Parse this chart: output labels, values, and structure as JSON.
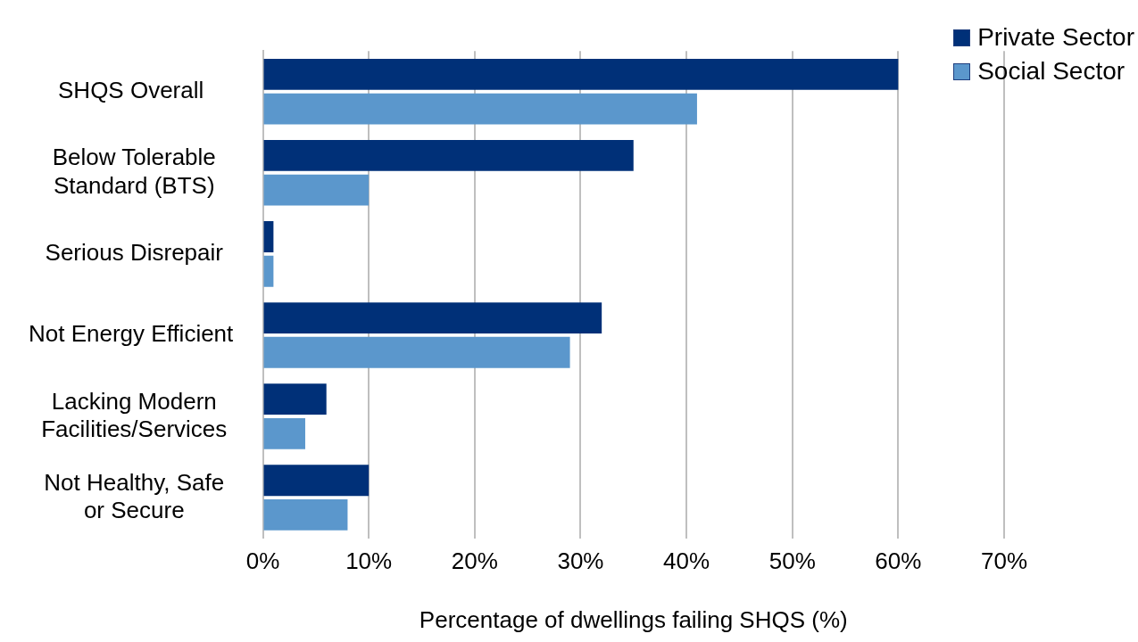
{
  "chart_data": {
    "type": "bar",
    "orientation": "horizontal",
    "xlabel": "Percentage of dwellings failing SHQS (%)",
    "categories": [
      "SHQS Overall ",
      "Below Tolerable\nStandard (BTS)",
      "Serious Disrepair",
      "Not Energy Efficient ",
      "Lacking Modern\nFacilities/Services",
      "Not Healthy, Safe\nor Secure"
    ],
    "series": [
      {
        "name": "Private Sector",
        "color": "#003078",
        "values": [
          60,
          35,
          1,
          32,
          6,
          10
        ]
      },
      {
        "name": "Social Sector",
        "color": "#5b97cc",
        "values": [
          41,
          10,
          1,
          29,
          4,
          8
        ]
      }
    ],
    "xlim": [
      0,
      70
    ],
    "xticks": [
      {
        "value": 0,
        "label": "0%"
      },
      {
        "value": 10,
        "label": "10%"
      },
      {
        "value": 20,
        "label": "20%"
      },
      {
        "value": 30,
        "label": "30%"
      },
      {
        "value": 40,
        "label": "40%"
      },
      {
        "value": 50,
        "label": "50%"
      },
      {
        "value": 60,
        "label": "60%"
      },
      {
        "value": 70,
        "label": "70%"
      }
    ],
    "grid": "x",
    "legend": "top right"
  }
}
